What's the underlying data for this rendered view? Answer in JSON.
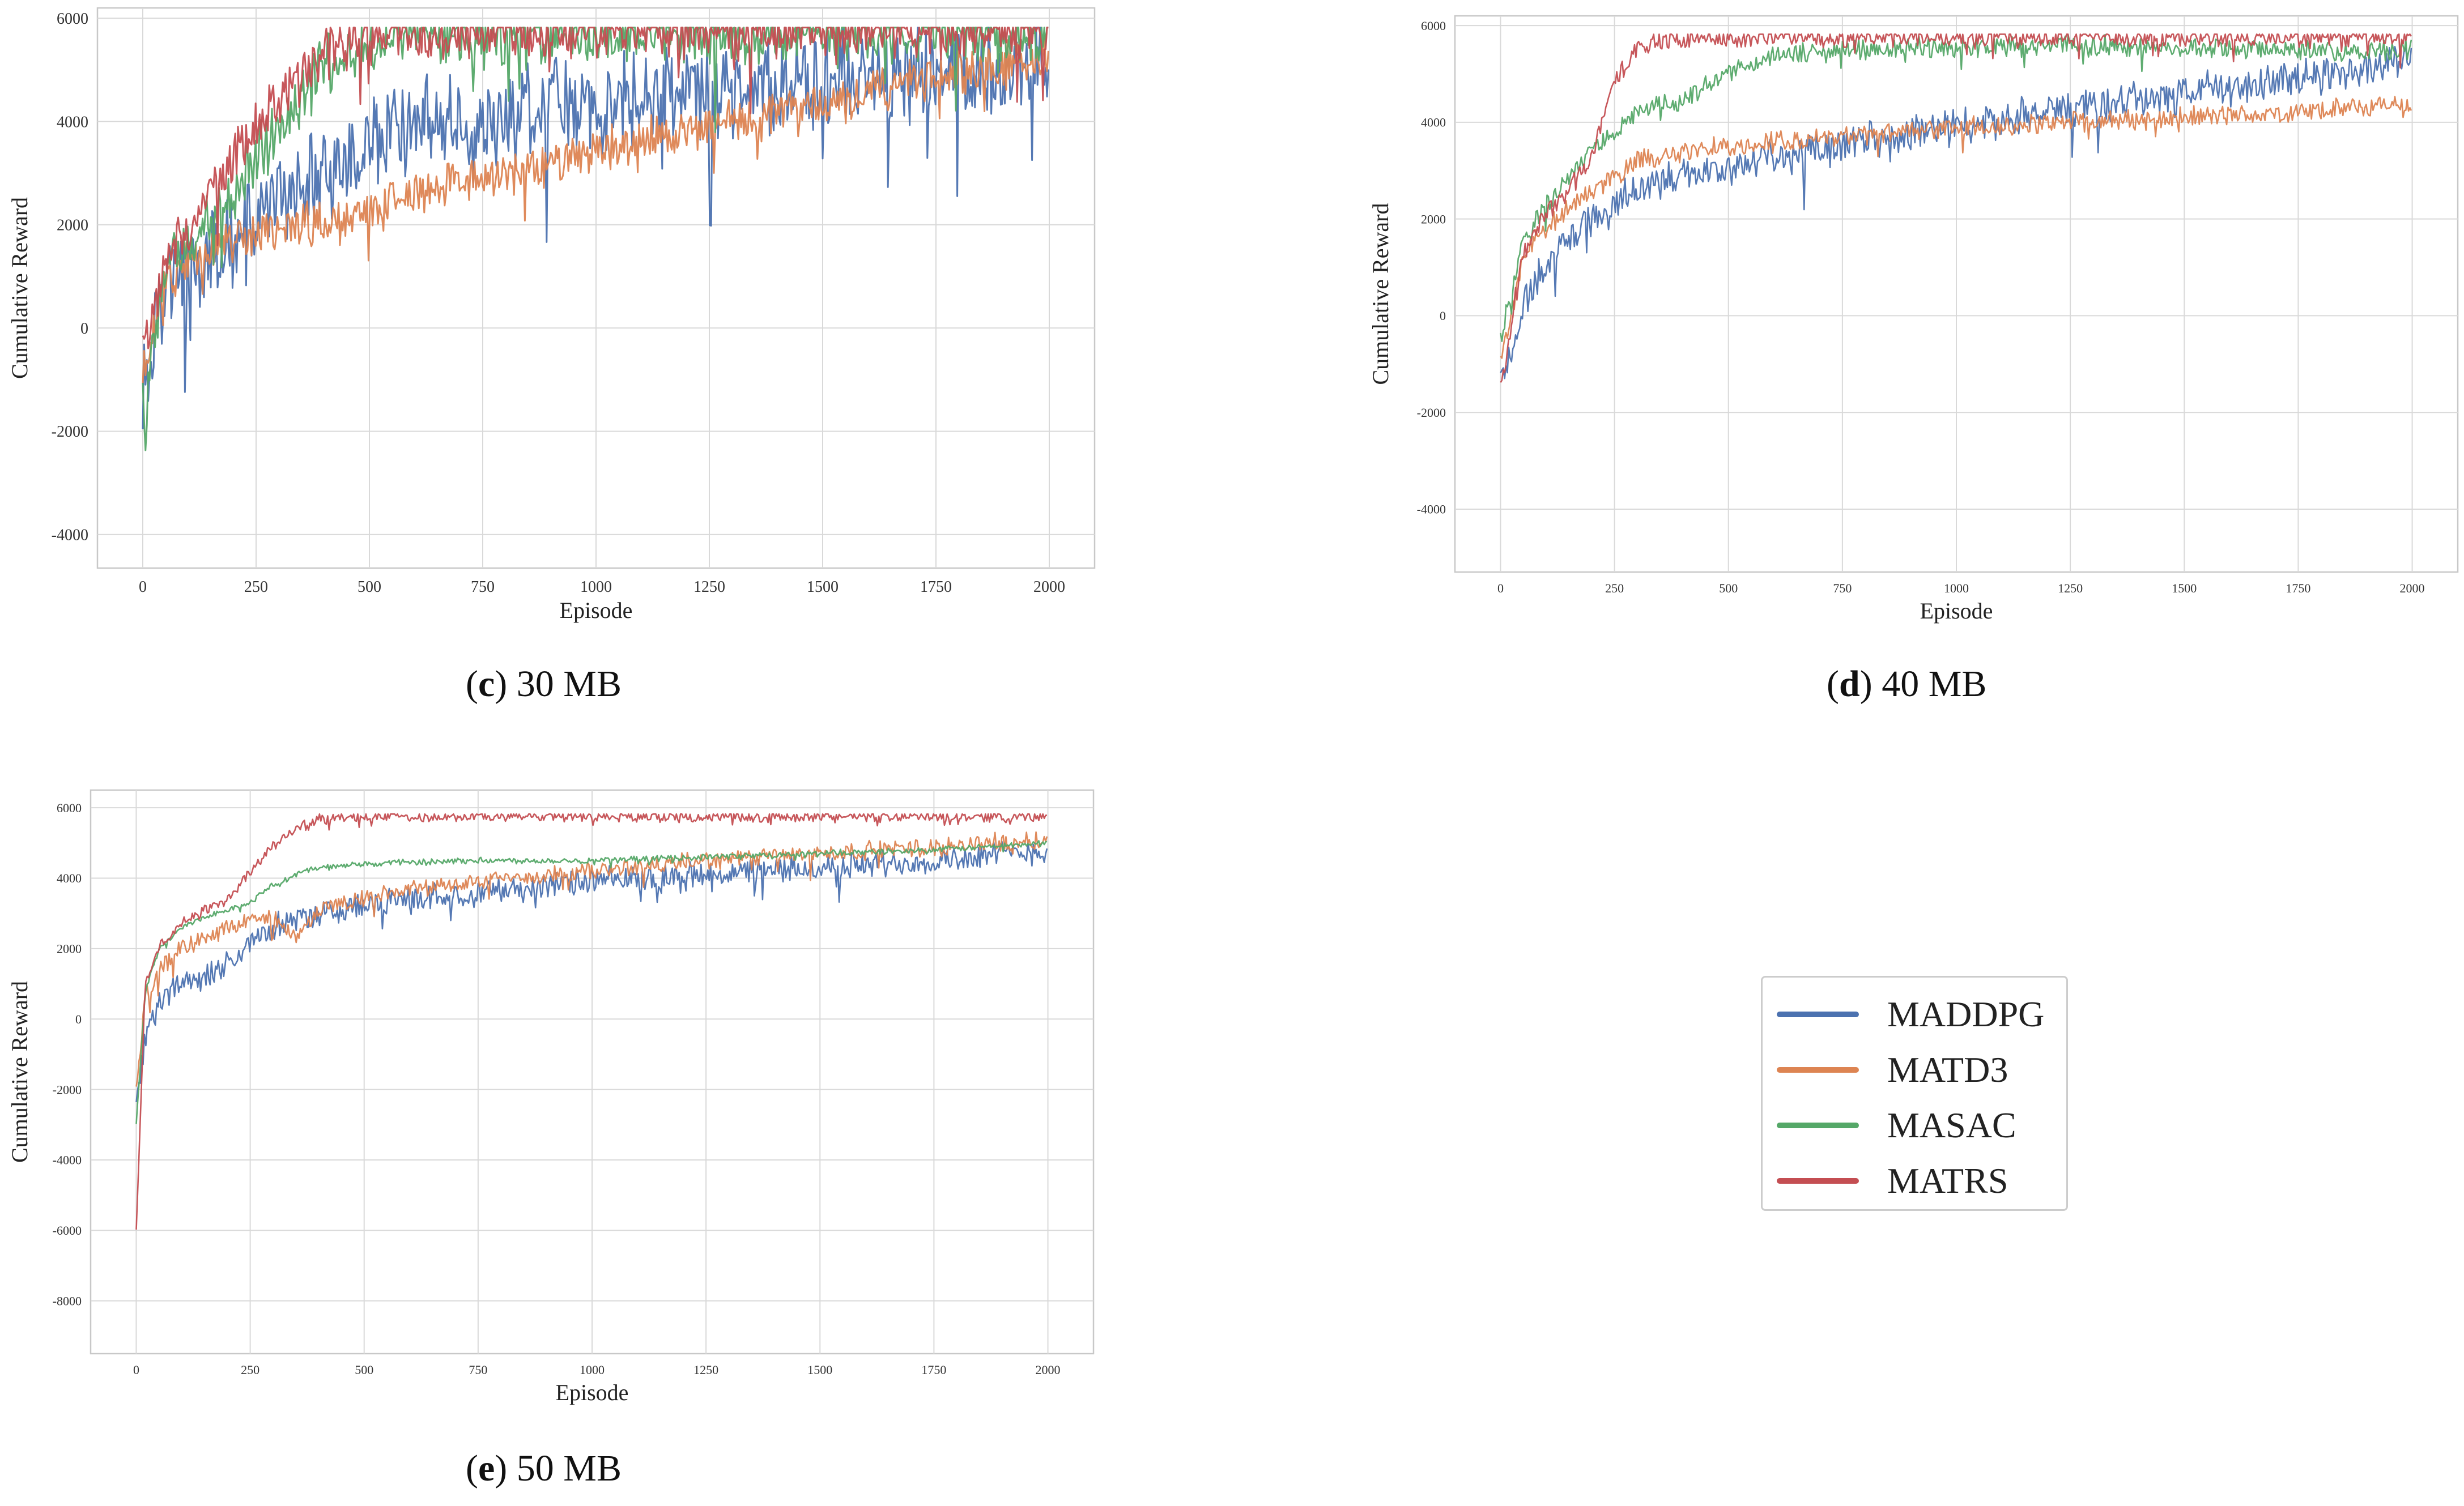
{
  "colors": {
    "MADDPG": "#4c72b0",
    "MATD3": "#dd8452",
    "MASAC": "#55a868",
    "MATRS": "#c44e52",
    "grid": "#d9d9d9",
    "frame": "#c8c8c8"
  },
  "captions": [
    {
      "letter": "c",
      "rest": " 30 MB"
    },
    {
      "letter": "d",
      "rest": " 40 MB"
    },
    {
      "letter": "e",
      "rest": " 50 MB"
    }
  ],
  "legend": [
    "MADDPG",
    "MATD3",
    "MASAC",
    "MATRS"
  ],
  "chart_data": [
    {
      "type": "line",
      "xlabel": "Episode",
      "ylabel": "Cumulative Reward",
      "xlim": [
        -100,
        2100
      ],
      "ylim": [
        -4650,
        6200
      ],
      "xticks": [
        0,
        250,
        500,
        750,
        1000,
        1250,
        1500,
        1750,
        2000
      ],
      "yticks": [
        -4000,
        -2000,
        0,
        2000,
        4000,
        6000
      ],
      "grid": true,
      "x": [
        0,
        50,
        100,
        150,
        200,
        250,
        300,
        350,
        400,
        500,
        600,
        750,
        1000,
        1250,
        1500,
        1750,
        2000
      ],
      "series": [
        {
          "name": "MADDPG",
          "values": [
            -1500,
            700,
            1000,
            1300,
            1700,
            2000,
            2500,
            2800,
            3200,
            3500,
            3900,
            4100,
            4400,
            4600,
            4800,
            5000,
            5100
          ],
          "noise": 1100
        },
        {
          "name": "MATD3",
          "values": [
            -800,
            900,
            1300,
            1500,
            1700,
            1800,
            1900,
            2000,
            2100,
            2200,
            2600,
            2900,
            3400,
            3900,
            4300,
            4900,
            5200
          ],
          "noise": 500
        },
        {
          "name": "MASAC",
          "values": [
            -1500,
            1200,
            1700,
            2200,
            2700,
            3300,
            3900,
            4500,
            5100,
            5500,
            5600,
            5650,
            5700,
            5700,
            5720,
            5700,
            5700
          ],
          "noise": 700
        },
        {
          "name": "MATRS",
          "values": [
            -500,
            1300,
            2000,
            2600,
            3300,
            3900,
            4400,
            4900,
            5300,
            5650,
            5700,
            5720,
            5750,
            5750,
            5750,
            5750,
            5750
          ],
          "noise": 600
        }
      ]
    },
    {
      "type": "line",
      "xlabel": "Episode",
      "ylabel": "Cumulative Reward",
      "xlim": [
        -100,
        2100
      ],
      "ylim": [
        -5300,
        6200
      ],
      "xticks": [
        0,
        250,
        500,
        750,
        1000,
        1250,
        1500,
        1750,
        2000
      ],
      "yticks": [
        -4000,
        -2000,
        0,
        2000,
        4000,
        6000
      ],
      "grid": true,
      "x": [
        0,
        50,
        100,
        150,
        200,
        250,
        300,
        400,
        500,
        600,
        750,
        1000,
        1250,
        1500,
        1750,
        2000
      ],
      "series": [
        {
          "name": "MADDPG",
          "values": [
            -1500,
            200,
            1000,
            1600,
            2000,
            2300,
            2600,
            2900,
            3000,
            3300,
            3500,
            3900,
            4300,
            4600,
            4900,
            5300
          ],
          "noise": 450
        },
        {
          "name": "MATD3",
          "values": [
            -1000,
            1200,
            1800,
            2200,
            2600,
            2900,
            3200,
            3400,
            3500,
            3600,
            3700,
            3900,
            4000,
            4100,
            4200,
            4400
          ],
          "noise": 250
        },
        {
          "name": "MASAC",
          "values": [
            -500,
            1600,
            2300,
            2900,
            3400,
            3800,
            4200,
            4500,
            5000,
            5400,
            5500,
            5550,
            5600,
            5550,
            5500,
            5500
          ],
          "noise": 250
        },
        {
          "name": "MATRS",
          "values": [
            -1500,
            1300,
            2100,
            2600,
            3300,
            4800,
            5600,
            5700,
            5750,
            5750,
            5750,
            5750,
            5750,
            5750,
            5750,
            5750
          ],
          "noise": 250
        }
      ]
    },
    {
      "type": "line",
      "xlabel": "Episode",
      "ylabel": "Cumulative Reward",
      "xlim": [
        -100,
        2100
      ],
      "ylim": [
        -9500,
        6500
      ],
      "xticks": [
        0,
        250,
        500,
        750,
        1000,
        1250,
        1500,
        1750,
        2000
      ],
      "yticks": [
        -8000,
        -6000,
        -4000,
        -2000,
        0,
        2000,
        4000,
        6000
      ],
      "grid": true,
      "x": [
        0,
        20,
        50,
        100,
        150,
        200,
        250,
        300,
        350,
        400,
        500,
        600,
        750,
        1000,
        1250,
        1500,
        1750,
        2000
      ],
      "series": [
        {
          "name": "MADDPG",
          "values": [
            -2500,
            -500,
            400,
            1000,
            1200,
            1500,
            2200,
            2600,
            2800,
            3000,
            3200,
            3400,
            3600,
            3900,
            4100,
            4300,
            4500,
            4800
          ],
          "noise": 450
        },
        {
          "name": "MATD3",
          "values": [
            -2000,
            600,
            1400,
            2000,
            2300,
            2600,
            2800,
            2900,
            2300,
            3100,
            3400,
            3700,
            3900,
            4200,
            4500,
            4700,
            4900,
            5100
          ],
          "noise": 300
        },
        {
          "name": "MASAC",
          "values": [
            -3000,
            800,
            2000,
            2600,
            2900,
            3100,
            3300,
            3800,
            4100,
            4300,
            4400,
            4450,
            4500,
            4500,
            4600,
            4700,
            4800,
            5000
          ],
          "noise": 100
        },
        {
          "name": "MATRS",
          "values": [
            -6000,
            1000,
            2100,
            2700,
            3100,
            3400,
            4200,
            4900,
            5400,
            5700,
            5750,
            5750,
            5750,
            5750,
            5750,
            5750,
            5750,
            5750
          ],
          "noise": 180
        }
      ]
    }
  ]
}
